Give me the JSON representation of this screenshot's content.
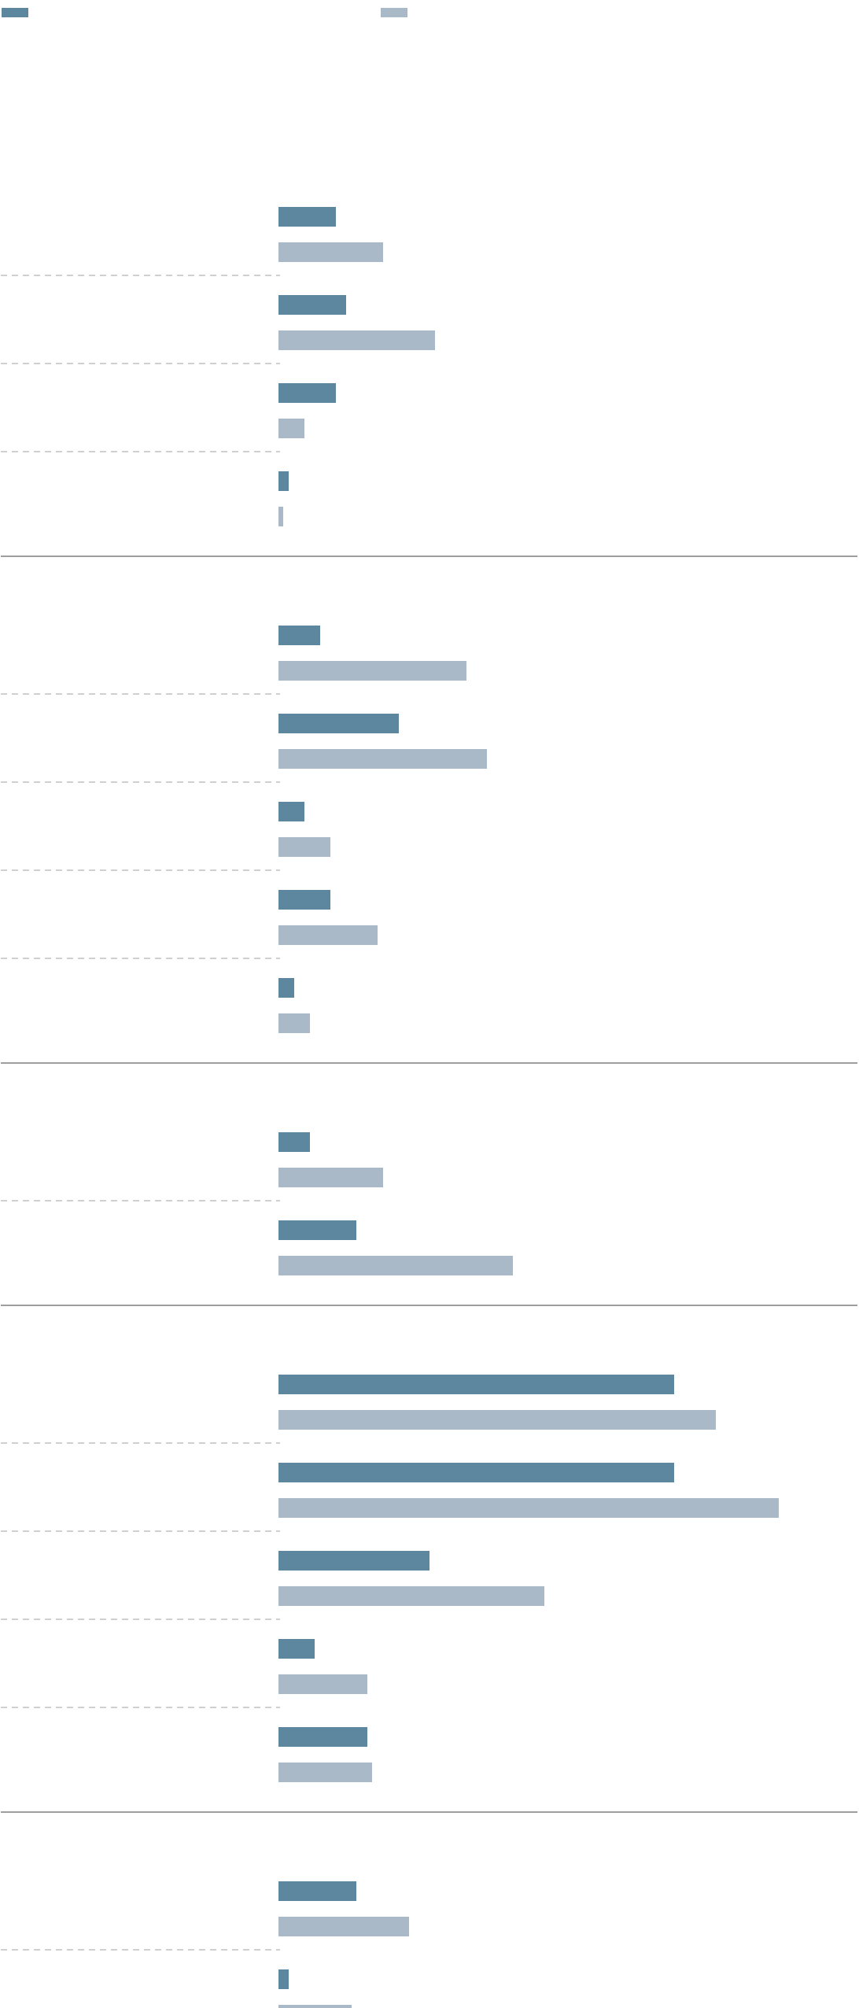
{
  "chart_data": {
    "type": "bar",
    "orientation": "horizontal",
    "title": "",
    "xlabel": "",
    "ylabel": "",
    "xlim": [
      0,
      100
    ],
    "grid": false,
    "legend_position": "top",
    "colors": {
      "series_0": "#5d879f",
      "series_1": "#a9b9c7",
      "group_divider": "#7f7f7f",
      "row_separator": "#b3b3b3"
    },
    "series": [
      {
        "name": ""
      },
      {
        "name": ""
      }
    ],
    "groups": [
      {
        "label": "",
        "rows": [
          {
            "label": "",
            "values": [
              7.3,
              13.3
            ]
          },
          {
            "label": "",
            "values": [
              8.6,
              19.9
            ]
          },
          {
            "label": "",
            "values": [
              7.3,
              3.3
            ]
          },
          {
            "label": "",
            "values": [
              1.3,
              0.6
            ]
          }
        ]
      },
      {
        "label": "",
        "rows": [
          {
            "label": "",
            "values": [
              5.3,
              23.9
            ]
          },
          {
            "label": "",
            "values": [
              15.3,
              26.5
            ]
          },
          {
            "label": "",
            "values": [
              3.3,
              6.6
            ]
          },
          {
            "label": "",
            "values": [
              6.6,
              12.6
            ]
          },
          {
            "label": "",
            "values": [
              2.0,
              4.0
            ]
          }
        ]
      },
      {
        "label": "",
        "rows": [
          {
            "label": "",
            "values": [
              4.0,
              13.3
            ]
          },
          {
            "label": "",
            "values": [
              9.9,
              29.8
            ]
          }
        ]
      },
      {
        "label": "",
        "rows": [
          {
            "label": "",
            "values": [
              50.3,
              55.6
            ]
          },
          {
            "label": "",
            "values": [
              50.3,
              63.6
            ]
          },
          {
            "label": "",
            "values": [
              19.2,
              33.8
            ]
          },
          {
            "label": "",
            "values": [
              4.6,
              11.3
            ]
          },
          {
            "label": "",
            "values": [
              11.3,
              11.9
            ]
          }
        ]
      },
      {
        "label": "",
        "rows": [
          {
            "label": "",
            "values": [
              9.9,
              16.6
            ]
          },
          {
            "label": "",
            "values": [
              1.3,
              9.3
            ]
          }
        ]
      }
    ]
  }
}
